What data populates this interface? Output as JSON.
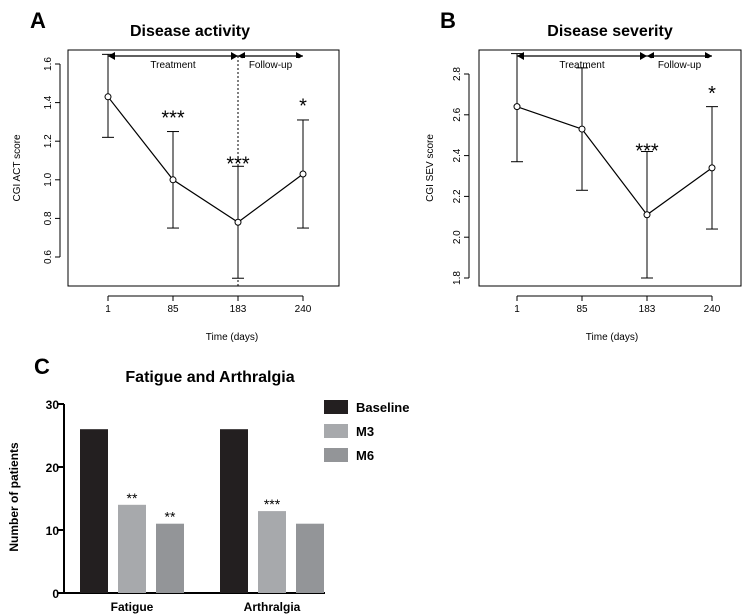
{
  "chart_data": [
    {
      "panel": "A",
      "type": "line",
      "title": "Disease activity",
      "xlabel": "Time (days)",
      "ylabel": "CGI ACT score",
      "x": [
        1,
        85,
        183,
        240
      ],
      "x_tick_labels": [
        "1",
        "85",
        "183",
        "240"
      ],
      "y_ticks": [
        0.6,
        0.8,
        1.0,
        1.2,
        1.4,
        1.6
      ],
      "y_tick_labels": [
        "0.6",
        "0.8",
        "1.0",
        "1.2",
        "1.4",
        "1.6"
      ],
      "ylim": [
        0.45,
        1.7
      ],
      "values": [
        1.43,
        1.0,
        0.78,
        1.03
      ],
      "err_low": [
        1.22,
        0.75,
        0.49,
        0.75
      ],
      "err_high": [
        1.65,
        1.25,
        1.07,
        1.31
      ],
      "significance": [
        "",
        "***",
        "***",
        "*"
      ],
      "phases": [
        {
          "label": "Treatment",
          "from": 1,
          "to": 183
        },
        {
          "label": "Follow-up",
          "from": 183,
          "to": 240
        }
      ],
      "vline_x": 183
    },
    {
      "panel": "B",
      "type": "line",
      "title": "Disease severity",
      "xlabel": "Time (days)",
      "ylabel": "CGI SEV score",
      "x": [
        1,
        85,
        183,
        240
      ],
      "x_tick_labels": [
        "1",
        "85",
        "183",
        "240"
      ],
      "y_ticks": [
        1.8,
        2.0,
        2.2,
        2.4,
        2.6,
        2.8
      ],
      "y_tick_labels": [
        "1.8",
        "2.0",
        "2.2",
        "2.4",
        "2.6",
        "2.8"
      ],
      "ylim": [
        1.78,
        2.92
      ],
      "values": [
        2.64,
        2.53,
        2.11,
        2.34
      ],
      "err_low": [
        2.37,
        2.23,
        1.8,
        2.04
      ],
      "err_high": [
        2.9,
        2.83,
        2.42,
        2.64
      ],
      "significance": [
        "",
        "",
        "***",
        "*"
      ],
      "phases": [
        {
          "label": "Treatment",
          "from": 1,
          "to": 183
        },
        {
          "label": "Follow-up",
          "from": 183,
          "to": 240
        }
      ]
    },
    {
      "panel": "C",
      "type": "bar",
      "title": "Fatigue and Arthralgia",
      "xlabel": "",
      "ylabel": "Number of patients",
      "categories": [
        "Fatigue",
        "Arthralgia"
      ],
      "series": [
        {
          "name": "Baseline",
          "color": "#231f20",
          "values": [
            26,
            26
          ],
          "significance": [
            "",
            ""
          ]
        },
        {
          "name": "M3",
          "color": "#a7a9ac",
          "values": [
            14,
            13
          ],
          "significance": [
            "**",
            "***"
          ]
        },
        {
          "name": "M6",
          "color": "#939598",
          "values": [
            11,
            11
          ],
          "significance": [
            "**",
            ""
          ]
        }
      ],
      "y_ticks": [
        0,
        10,
        20,
        30
      ],
      "y_tick_labels": [
        "0",
        "10",
        "20",
        "30"
      ],
      "ylim": [
        0,
        30
      ],
      "legend_position": "top-right"
    }
  ],
  "panel_labels": [
    "A",
    "B",
    "C"
  ]
}
